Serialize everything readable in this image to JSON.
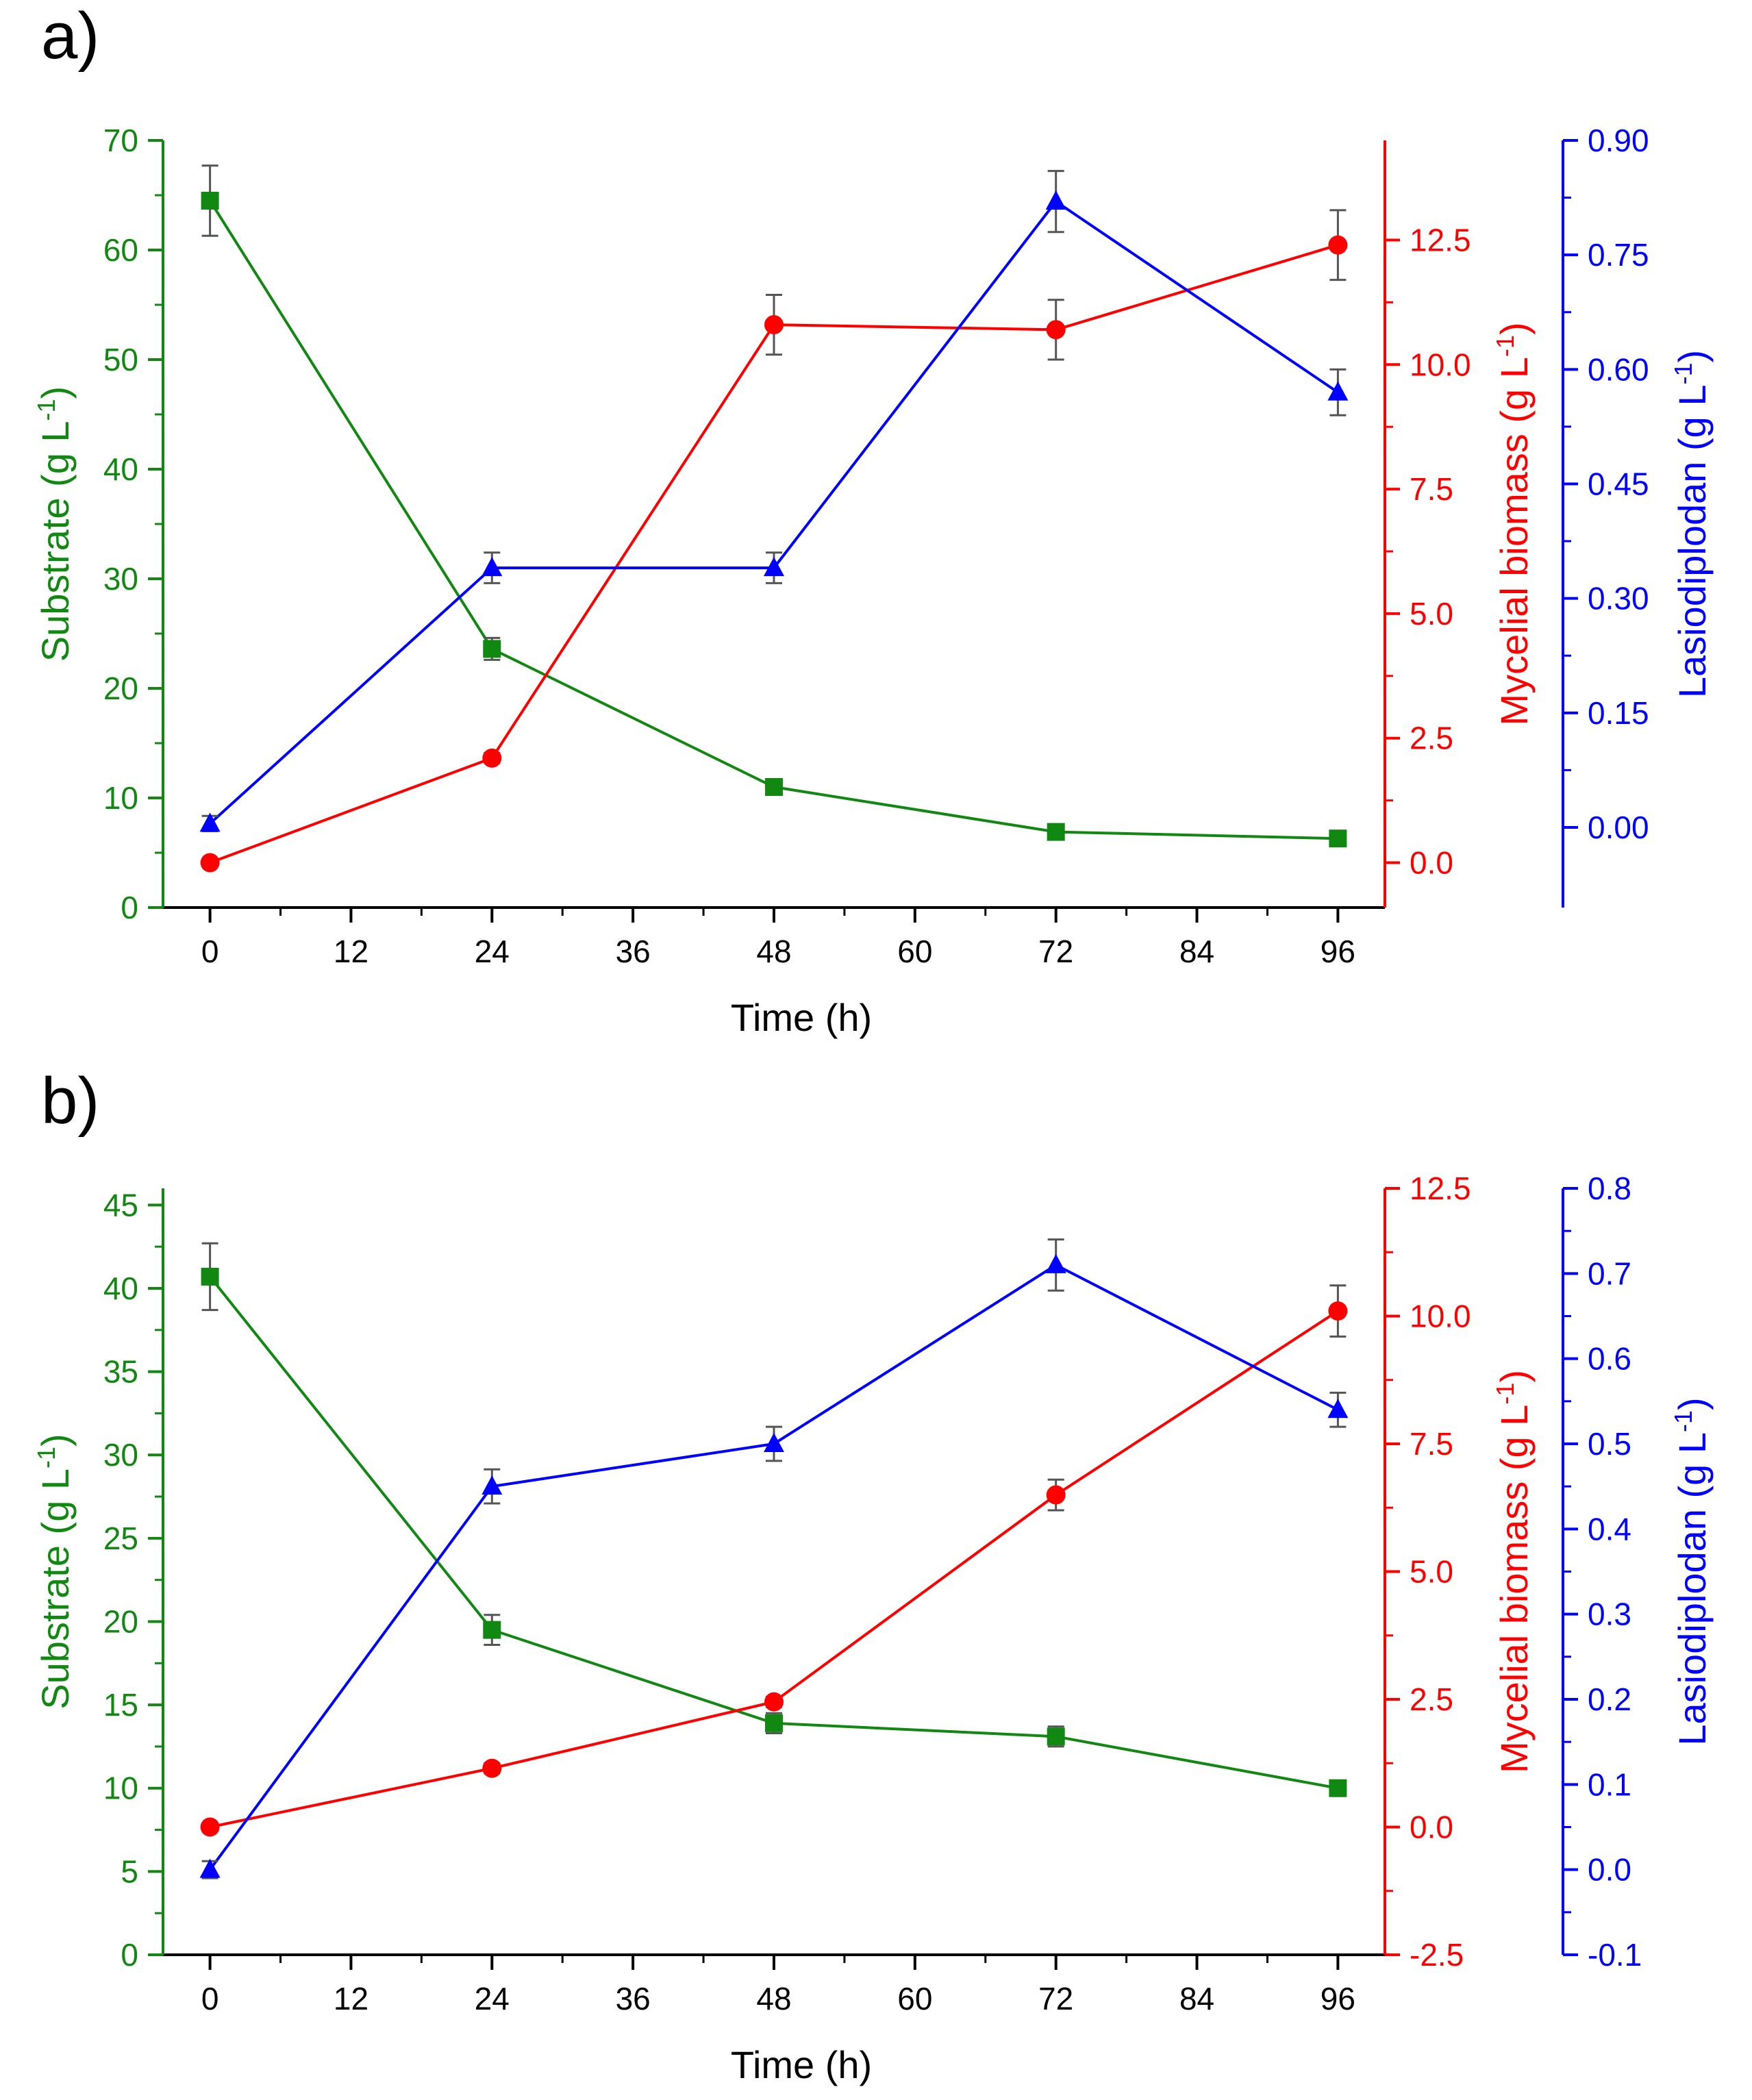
{
  "colors": {
    "substrate": "#118811",
    "biomass": "#ff0000",
    "lasiodiplodan": "#0000ff",
    "error_bar": "#555555",
    "x_axis": "#000000"
  },
  "chart_data": [
    {
      "panel_label": "a)",
      "type": "line",
      "xlabel": "Time (h)",
      "x": [
        0,
        24,
        48,
        72,
        96
      ],
      "x_ticks": [
        0,
        12,
        24,
        36,
        48,
        60,
        72,
        84,
        96
      ],
      "x_tick_labels": [
        "0",
        "12",
        "24",
        "36",
        "48",
        "60",
        "72",
        "84",
        "96"
      ],
      "xlim": [
        -4,
        100
      ],
      "axes": [
        {
          "id": "substrate",
          "side": "left",
          "label": "Substrate (g L",
          "label_sup": "-1",
          "label_end": ")",
          "ylim": [
            0,
            70
          ],
          "ticks": [
            0,
            10,
            20,
            30,
            40,
            50,
            60,
            70
          ],
          "tick_labels": [
            "0",
            "10",
            "20",
            "30",
            "40",
            "50",
            "60",
            "70"
          ]
        },
        {
          "id": "biomass",
          "side": "right",
          "label": "Mycelial biomass (g L",
          "label_sup": "-1",
          "label_end": ")",
          "ylim": [
            -0.9,
            14.5
          ],
          "ticks": [
            0.0,
            2.5,
            5.0,
            7.5,
            10.0,
            12.5
          ],
          "tick_labels": [
            "0.0",
            "2.5",
            "5.0",
            "7.5",
            "10.0",
            "12.5"
          ]
        },
        {
          "id": "lasiodiplodan",
          "side": "right-outer",
          "label": "Lasiodiplodan (g L",
          "label_sup": "-1",
          "label_end": ")",
          "ylim": [
            -0.105,
            0.9
          ],
          "ticks": [
            0.0,
            0.15,
            0.3,
            0.45,
            0.6,
            0.75,
            0.9
          ],
          "tick_labels": [
            "0.00",
            "0.15",
            "0.30",
            "0.45",
            "0.60",
            "0.75",
            "0.90"
          ]
        }
      ],
      "series": [
        {
          "name": "Substrate",
          "axis": "substrate",
          "marker": "square",
          "values": [
            64.5,
            23.6,
            11.0,
            6.9,
            6.3
          ],
          "errors": [
            3.2,
            1.0,
            0.4,
            0.4,
            0.5
          ]
        },
        {
          "name": "Mycelial biomass",
          "axis": "biomass",
          "marker": "circle",
          "values": [
            0.0,
            2.1,
            10.8,
            10.7,
            12.4
          ],
          "errors": [
            0.05,
            0.1,
            0.6,
            0.6,
            0.7
          ]
        },
        {
          "name": "Lasiodiplodan",
          "axis": "lasiodiplodan",
          "marker": "triangle",
          "values": [
            0.005,
            0.34,
            0.34,
            0.82,
            0.57
          ],
          "errors": [
            0.01,
            0.02,
            0.02,
            0.04,
            0.03
          ]
        }
      ]
    },
    {
      "panel_label": "b)",
      "type": "line",
      "xlabel": "Time (h)",
      "x": [
        0,
        24,
        48,
        72,
        96
      ],
      "x_ticks": [
        0,
        12,
        24,
        36,
        48,
        60,
        72,
        84,
        96
      ],
      "x_tick_labels": [
        "0",
        "12",
        "24",
        "36",
        "48",
        "60",
        "72",
        "84",
        "96"
      ],
      "xlim": [
        -4,
        100
      ],
      "axes": [
        {
          "id": "substrate",
          "side": "left",
          "label": "Substrate (g L",
          "label_sup": "-1",
          "label_end": ")",
          "ylim": [
            0,
            46
          ],
          "ticks": [
            0,
            5,
            10,
            15,
            20,
            25,
            30,
            35,
            40,
            45
          ],
          "tick_labels": [
            "0",
            "5",
            "10",
            "15",
            "20",
            "25",
            "30",
            "35",
            "40",
            "45"
          ]
        },
        {
          "id": "biomass",
          "side": "right",
          "label": "Mycelial biomass (g L",
          "label_sup": "-1",
          "label_end": ")",
          "ylim": [
            -2.5,
            12.5
          ],
          "ticks": [
            -2.5,
            0.0,
            2.5,
            5.0,
            7.5,
            10.0,
            12.5
          ],
          "tick_labels": [
            "-2.5",
            "0.0",
            "2.5",
            "5.0",
            "7.5",
            "10.0",
            "12.5"
          ]
        },
        {
          "id": "lasiodiplodan",
          "side": "right-outer",
          "label": "Lasiodiplodan (g L",
          "label_sup": "-1",
          "label_end": ")",
          "ylim": [
            -0.1,
            0.8
          ],
          "ticks": [
            -0.1,
            0.0,
            0.1,
            0.2,
            0.3,
            0.4,
            0.5,
            0.6,
            0.7,
            0.8
          ],
          "tick_labels": [
            "-0.1",
            "0.0",
            "0.1",
            "0.2",
            "0.3",
            "0.4",
            "0.5",
            "0.6",
            "0.7",
            "0.8"
          ]
        }
      ],
      "series": [
        {
          "name": "Substrate",
          "axis": "substrate",
          "marker": "square",
          "values": [
            40.7,
            19.5,
            13.9,
            13.1,
            10.0
          ],
          "errors": [
            2.0,
            0.9,
            0.6,
            0.6,
            0.3
          ]
        },
        {
          "name": "Mycelial biomass",
          "axis": "biomass",
          "marker": "circle",
          "values": [
            0.0,
            1.15,
            2.45,
            6.5,
            10.1
          ],
          "errors": [
            0.05,
            0.1,
            0.1,
            0.3,
            0.5
          ]
        },
        {
          "name": "Lasiodiplodan",
          "axis": "lasiodiplodan",
          "marker": "triangle",
          "values": [
            0.0,
            0.45,
            0.5,
            0.71,
            0.54
          ],
          "errors": [
            0.01,
            0.02,
            0.02,
            0.03,
            0.02
          ]
        }
      ]
    }
  ]
}
